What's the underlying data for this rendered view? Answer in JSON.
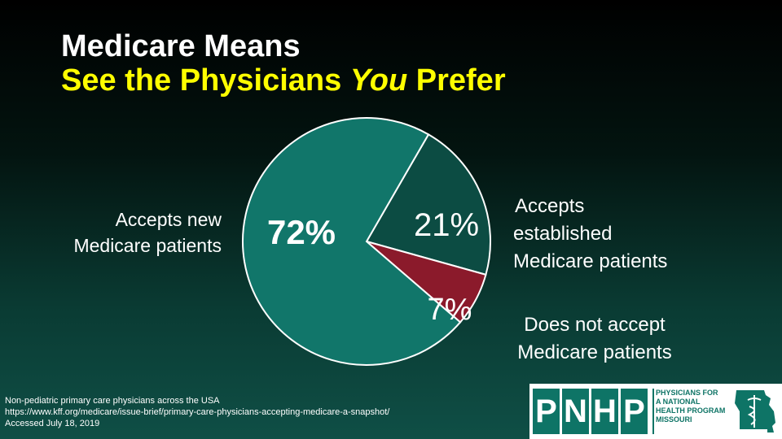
{
  "title": {
    "line1": "Medicare Means",
    "line2_pre": "See the Physicians ",
    "line2_em": "You",
    "line2_post": " Prefer"
  },
  "chart_data": {
    "type": "pie",
    "title": "",
    "slices": [
      {
        "label": "Accepts new Medicare patients",
        "value": 72,
        "display": "72%",
        "color": "#11766a"
      },
      {
        "label": "Accepts established Medicare patients",
        "value": 21,
        "display": "21%",
        "color": "#0c4c43"
      },
      {
        "label": "Does not accept Medicare patients",
        "value": 7,
        "display": "7%",
        "color": "#8b1a2b"
      }
    ]
  },
  "labels": {
    "left": [
      "Accepts new",
      "Medicare patients"
    ],
    "established": [
      "Accepts",
      "established",
      "Medicare patients"
    ],
    "not_accept": [
      "Does not accept",
      "Medicare patients"
    ]
  },
  "source": {
    "line1": "Non-pediatric primary care physicians across the USA",
    "line2": "https://www.kff.org/medicare/issue-brief/primary-care-physicians-accepting-medicare-a-snapshot/",
    "line3": "Accessed July 18, 2019"
  },
  "logo": {
    "letters": [
      "P",
      "N",
      "H",
      "P"
    ],
    "tag": [
      "PHYSICIANS FOR",
      "A NATIONAL",
      "HEALTH PROGRAM",
      "MISSOURI"
    ]
  }
}
